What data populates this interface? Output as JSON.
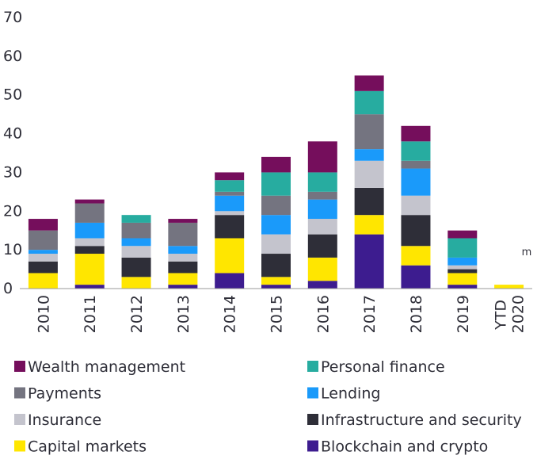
{
  "chart_data": {
    "type": "stacked_bar",
    "categories": [
      "2010",
      "2011",
      "2012",
      "2013",
      "2014",
      "2015",
      "2016",
      "2017",
      "2018",
      "2019",
      "YTD 2020"
    ],
    "footnote_mark": "m",
    "series": [
      {
        "name": "Blockchain and crypto",
        "color": "#3d1c8f",
        "values": [
          0,
          1,
          0,
          1,
          4,
          1,
          2,
          14,
          6,
          1,
          0
        ]
      },
      {
        "name": "Capital markets",
        "color": "#ffe600",
        "values": [
          4,
          8,
          3,
          3,
          9,
          2,
          6,
          5,
          5,
          3,
          1
        ]
      },
      {
        "name": "Infrastructure and security",
        "color": "#2e2e38",
        "values": [
          3,
          2,
          5,
          3,
          6,
          6,
          6,
          7,
          8,
          1,
          0
        ]
      },
      {
        "name": "Insurance",
        "color": "#c4c4cd",
        "values": [
          2,
          2,
          3,
          2,
          1,
          5,
          4,
          7,
          5,
          1,
          0
        ]
      },
      {
        "name": "Lending",
        "color": "#1a9afa",
        "values": [
          1,
          4,
          2,
          2,
          4,
          5,
          5,
          3,
          7,
          2,
          0
        ]
      },
      {
        "name": "Payments",
        "color": "#747480",
        "values": [
          5,
          5,
          4,
          6,
          1,
          5,
          2,
          9,
          2,
          0,
          0
        ]
      },
      {
        "name": "Personal finance",
        "color": "#27aca0",
        "values": [
          0,
          0,
          2,
          0,
          3,
          6,
          5,
          6,
          5,
          5,
          0
        ]
      },
      {
        "name": "Wealth management",
        "color": "#750e5c",
        "values": [
          3,
          1,
          0,
          1,
          2,
          4,
          8,
          4,
          4,
          2,
          0
        ]
      }
    ],
    "ylim": [
      0,
      70
    ],
    "yticks": [
      0,
      10,
      20,
      30,
      40,
      50,
      60,
      70
    ],
    "grid": false
  }
}
